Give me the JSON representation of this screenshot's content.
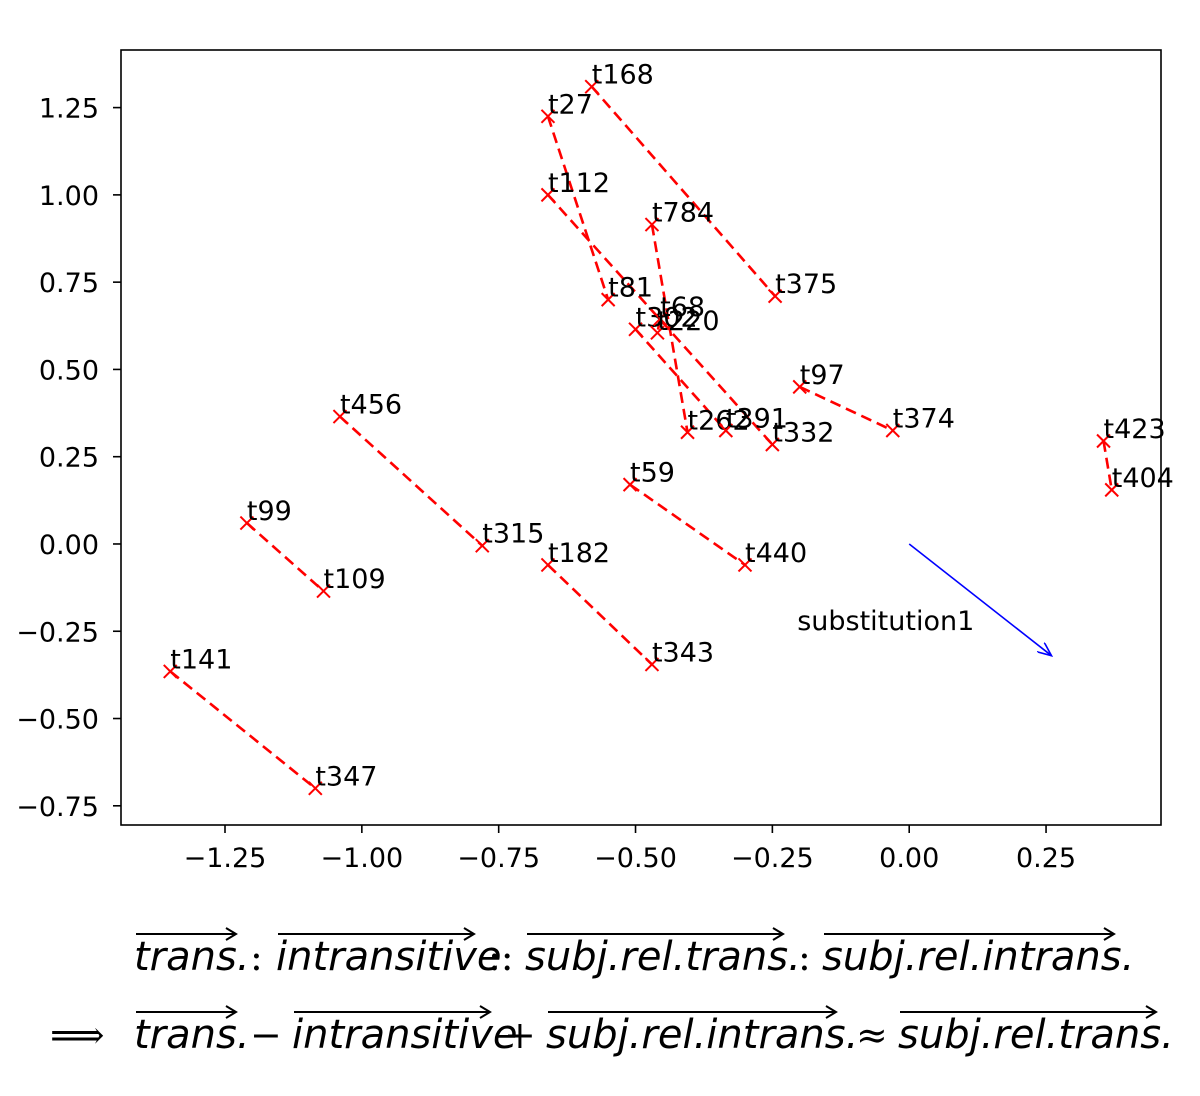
{
  "chart_data": {
    "type": "scatter",
    "xlim": [
      -1.44,
      0.46
    ],
    "ylim": [
      -0.805,
      1.415
    ],
    "x_ticks": [
      {
        "v": -1.25,
        "label": "−1.25"
      },
      {
        "v": -1.0,
        "label": "−1.00"
      },
      {
        "v": -0.75,
        "label": "−0.75"
      },
      {
        "v": -0.5,
        "label": "−0.50"
      },
      {
        "v": -0.25,
        "label": "−0.25"
      },
      {
        "v": 0.0,
        "label": "0.00"
      },
      {
        "v": 0.25,
        "label": "0.25"
      }
    ],
    "y_ticks": [
      {
        "v": 1.25,
        "label": "1.25"
      },
      {
        "v": 1.0,
        "label": "1.00"
      },
      {
        "v": 0.75,
        "label": "0.75"
      },
      {
        "v": 0.5,
        "label": "0.50"
      },
      {
        "v": 0.25,
        "label": "0.25"
      },
      {
        "v": 0.0,
        "label": "0.00"
      },
      {
        "v": -0.25,
        "label": "−0.25"
      },
      {
        "v": -0.5,
        "label": "−0.50"
      },
      {
        "v": -0.75,
        "label": "−0.75"
      }
    ],
    "grid": false,
    "line_color": "#ff0000",
    "arrow_color": "#0000ff",
    "pairs": [
      [
        {
          "label": "t168",
          "x": -0.58,
          "y": 1.31
        },
        {
          "label": "t375",
          "x": -0.245,
          "y": 0.71
        }
      ],
      [
        {
          "label": "t27",
          "x": -0.66,
          "y": 1.225
        },
        {
          "label": "t81",
          "x": -0.55,
          "y": 0.7
        }
      ],
      [
        {
          "label": "t112",
          "x": -0.66,
          "y": 1.0
        },
        {
          "label": "t332",
          "x": -0.25,
          "y": 0.285
        }
      ],
      [
        {
          "label": "t784",
          "x": -0.47,
          "y": 0.915
        },
        {
          "label": "t262",
          "x": -0.405,
          "y": 0.32
        }
      ],
      [
        {
          "label": "t302",
          "x": -0.5,
          "y": 0.615
        },
        {
          "label": "t391",
          "x": -0.335,
          "y": 0.325
        }
      ],
      [
        {
          "label": "t68",
          "x": -0.455,
          "y": 0.645
        },
        {
          "label": "t220",
          "x": -0.46,
          "y": 0.605
        }
      ],
      [
        {
          "label": "t97",
          "x": -0.2,
          "y": 0.45
        },
        {
          "label": "t374",
          "x": -0.03,
          "y": 0.325
        }
      ],
      [
        {
          "label": "t423",
          "x": 0.355,
          "y": 0.295
        },
        {
          "label": "t404",
          "x": 0.37,
          "y": 0.155
        }
      ],
      [
        {
          "label": "t456",
          "x": -1.04,
          "y": 0.365
        },
        {
          "label": "t315",
          "x": -0.78,
          "y": -0.005
        }
      ],
      [
        {
          "label": "t59",
          "x": -0.51,
          "y": 0.17
        },
        {
          "label": "t440",
          "x": -0.3,
          "y": -0.06
        }
      ],
      [
        {
          "label": "t99",
          "x": -1.21,
          "y": 0.06
        },
        {
          "label": "t109",
          "x": -1.07,
          "y": -0.135
        }
      ],
      [
        {
          "label": "t182",
          "x": -0.66,
          "y": -0.06
        },
        {
          "label": "t343",
          "x": -0.47,
          "y": -0.345
        }
      ],
      [
        {
          "label": "t141",
          "x": -1.35,
          "y": -0.365
        },
        {
          "label": "t347",
          "x": -1.085,
          "y": -0.7
        }
      ]
    ],
    "arrow": {
      "label": "substitution1",
      "x0": 0.0,
      "y0": 0.0,
      "x1": 0.26,
      "y1": -0.32
    }
  },
  "formula": {
    "line1": {
      "a": "trans.",
      "op1": ":",
      "b": "intransitive",
      "op2": "::",
      "c": "subj.rel.trans.",
      "op3": ":",
      "d": "subj.rel.intrans."
    },
    "line2": {
      "implies": "⟹",
      "a": "trans.",
      "op1": "−",
      "b": "intransitive",
      "op2": "+",
      "c": "subj.rel.intrans.",
      "op3": "≈",
      "d": "subj.rel.trans."
    }
  }
}
